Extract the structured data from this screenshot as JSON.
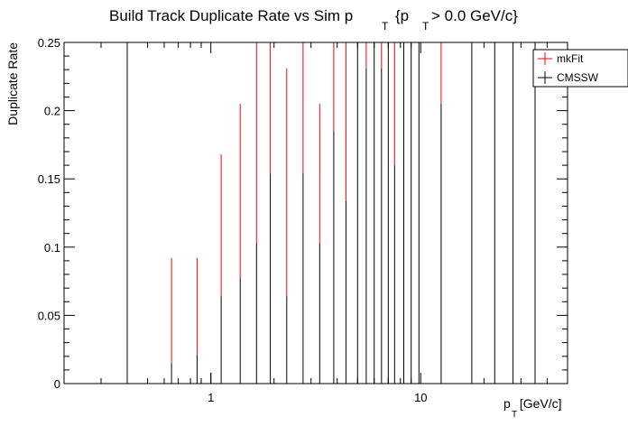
{
  "chart_data": {
    "type": "errorbar",
    "title": {
      "prefix": "Build Track Duplicate Rate vs Sim p",
      "sub1": "T",
      "mid": "{p",
      "sub2": "T",
      "suffix": " > 0.0 GeV/c}"
    },
    "xlabel": {
      "main": "p",
      "sub": "T",
      "rest": " [GeV/c]"
    },
    "ylabel": "Duplicate Rate",
    "x_scale": "log",
    "xlim": [
      0.2,
      50
    ],
    "ylim": [
      0,
      0.25
    ],
    "grid": false,
    "legend_position": "top-right",
    "y_ticks": [
      {
        "v": 0,
        "label": "0"
      },
      {
        "v": 0.05,
        "label": "0.05"
      },
      {
        "v": 0.1,
        "label": "0.1"
      },
      {
        "v": 0.15,
        "label": "0.15"
      },
      {
        "v": 0.2,
        "label": "0.2"
      },
      {
        "v": 0.25,
        "label": "0.25"
      }
    ],
    "x_tick_labels": [
      {
        "v": 1,
        "label": "1"
      },
      {
        "v": 10,
        "label": "10"
      }
    ],
    "series": [
      {
        "name": "mkFit",
        "color": "#ff0000",
        "points": [
          {
            "x": 0.65,
            "low": 0.015,
            "high": 0.092
          },
          {
            "x": 0.86,
            "low": 0.021,
            "high": 0.092
          },
          {
            "x": 1.12,
            "low": 0.064,
            "high": 0.168
          },
          {
            "x": 1.38,
            "low": 0.077,
            "high": 0.205
          },
          {
            "x": 1.65,
            "low": 0.103,
            "high": 0.25
          },
          {
            "x": 1.92,
            "low": 0.154,
            "high": 0.25
          },
          {
            "x": 2.3,
            "low": 0.064,
            "high": 0.231
          },
          {
            "x": 2.75,
            "low": 0.154,
            "high": 0.25
          },
          {
            "x": 3.3,
            "low": 0.103,
            "high": 0.205
          },
          {
            "x": 3.85,
            "low": 0.185,
            "high": 0.25
          },
          {
            "x": 4.4,
            "low": 0.134,
            "high": 0.25
          },
          {
            "x": 5.5,
            "low": 0.231,
            "high": 0.25
          },
          {
            "x": 6.5,
            "low": 0.231,
            "high": 0.25
          },
          {
            "x": 7.5,
            "low": 0.16,
            "high": 0.25
          },
          {
            "x": 12.5,
            "low": 0.205,
            "high": 0.25
          }
        ]
      },
      {
        "name": "CMSSW",
        "color": "#000000",
        "points": [
          {
            "x": 0.4,
            "low": 0,
            "high": 0.25
          },
          {
            "x": 0.65,
            "low": 0,
            "high": 0.015
          },
          {
            "x": 0.86,
            "low": 0,
            "high": 0.021
          },
          {
            "x": 1.0,
            "low": 0,
            "high": 0.008
          },
          {
            "x": 1.12,
            "low": 0,
            "high": 0.064
          },
          {
            "x": 1.38,
            "low": 0,
            "high": 0.077
          },
          {
            "x": 1.65,
            "low": 0,
            "high": 0.103
          },
          {
            "x": 1.92,
            "low": 0,
            "high": 0.154
          },
          {
            "x": 2.3,
            "low": 0,
            "high": 0.064
          },
          {
            "x": 2.75,
            "low": 0,
            "high": 0.154
          },
          {
            "x": 3.3,
            "low": 0,
            "high": 0.103
          },
          {
            "x": 3.85,
            "low": 0,
            "high": 0.185
          },
          {
            "x": 4.4,
            "low": 0,
            "high": 0.134
          },
          {
            "x": 5.0,
            "low": 0,
            "high": 0.25
          },
          {
            "x": 5.5,
            "low": 0,
            "high": 0.231
          },
          {
            "x": 6.0,
            "low": 0,
            "high": 0.25
          },
          {
            "x": 6.5,
            "low": 0,
            "high": 0.231
          },
          {
            "x": 7.0,
            "low": 0,
            "high": 0.25
          },
          {
            "x": 7.5,
            "low": 0,
            "high": 0.16
          },
          {
            "x": 8.3,
            "low": 0,
            "high": 0.25
          },
          {
            "x": 9.0,
            "low": 0,
            "high": 0.25
          },
          {
            "x": 9.8,
            "low": 0,
            "high": 0.25
          },
          {
            "x": 12.5,
            "low": 0,
            "high": 0.205
          },
          {
            "x": 17.5,
            "low": 0,
            "high": 0.25
          },
          {
            "x": 22.5,
            "low": 0,
            "high": 0.25
          },
          {
            "x": 27.5,
            "low": 0,
            "high": 0.25
          },
          {
            "x": 35,
            "low": 0,
            "high": 0.25
          }
        ]
      }
    ]
  }
}
